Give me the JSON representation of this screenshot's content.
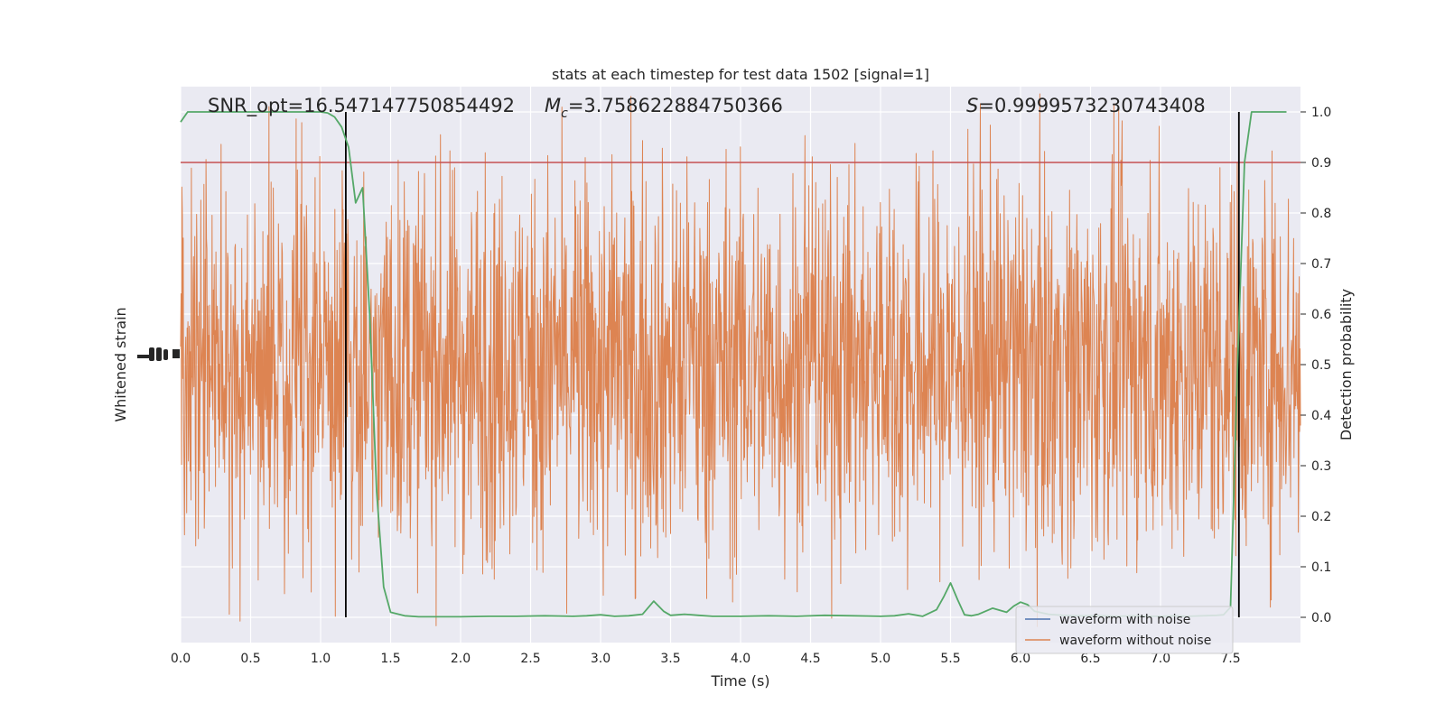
{
  "chart_data": {
    "type": "line",
    "title": "stats at each timestep for test data 1502 [signal=1]",
    "xlabel": "Time (s)",
    "ylabel_left": "Whitened strain",
    "ylabel_right": "Detection probability",
    "xlim": [
      0,
      8
    ],
    "ylim_right": [
      -0.05,
      1.05
    ],
    "x_ticks": [
      "0.0",
      "0.5",
      "1.0",
      "1.5",
      "2.0",
      "2.5",
      "3.0",
      "3.5",
      "4.0",
      "4.5",
      "5.0",
      "5.5",
      "6.0",
      "6.5",
      "7.0",
      "7.5"
    ],
    "y_ticks_right": [
      "0.0",
      "0.1",
      "0.2",
      "0.3",
      "0.4",
      "0.5",
      "0.6",
      "0.7",
      "0.8",
      "0.9",
      "1.0"
    ],
    "grid": true,
    "legend_position": "lower-right",
    "annotations": {
      "snr": "SNR_opt=16.547147750854492",
      "mc_symbol": "M",
      "mc_sub": "c",
      "mc_value": "=3.758622884750366",
      "s_symbol": "S",
      "s_value": "=0.9999573230743408"
    },
    "threshold": 0.9,
    "vlines": [
      1.18,
      7.56
    ],
    "series": [
      {
        "name": "waveform with noise",
        "color": "#4c72b0"
      },
      {
        "name": "waveform without noise",
        "color": "#dd8452"
      }
    ],
    "detection_probability": {
      "color": "#55a868",
      "x": [
        0.0,
        0.05,
        0.1,
        0.2,
        0.3,
        0.4,
        0.5,
        0.6,
        0.7,
        0.8,
        0.9,
        1.0,
        1.05,
        1.1,
        1.15,
        1.2,
        1.25,
        1.3,
        1.35,
        1.4,
        1.45,
        1.5,
        1.6,
        1.7,
        1.8,
        2.0,
        2.2,
        2.4,
        2.6,
        2.8,
        2.9,
        3.0,
        3.1,
        3.2,
        3.3,
        3.38,
        3.45,
        3.5,
        3.6,
        3.7,
        3.8,
        4.0,
        4.2,
        4.4,
        4.6,
        4.8,
        5.0,
        5.1,
        5.2,
        5.3,
        5.4,
        5.45,
        5.5,
        5.55,
        5.6,
        5.65,
        5.7,
        5.8,
        5.9,
        5.95,
        6.0,
        6.05,
        6.1,
        6.2,
        6.3,
        6.4,
        6.5,
        6.6,
        6.7,
        6.8,
        6.9,
        7.0,
        7.1,
        7.2,
        7.3,
        7.4,
        7.45,
        7.5,
        7.55,
        7.6,
        7.65,
        7.7,
        7.8,
        7.9
      ],
      "values": [
        0.98,
        1.0,
        1.0,
        1.0,
        1.0,
        1.0,
        1.0,
        1.0,
        1.0,
        1.0,
        1.0,
        1.0,
        0.998,
        0.99,
        0.97,
        0.93,
        0.82,
        0.85,
        0.6,
        0.25,
        0.06,
        0.01,
        0.003,
        0.001,
        0.001,
        0.001,
        0.002,
        0.002,
        0.003,
        0.002,
        0.003,
        0.005,
        0.002,
        0.003,
        0.006,
        0.032,
        0.012,
        0.004,
        0.006,
        0.004,
        0.002,
        0.002,
        0.003,
        0.002,
        0.004,
        0.003,
        0.002,
        0.003,
        0.007,
        0.002,
        0.015,
        0.04,
        0.068,
        0.035,
        0.005,
        0.003,
        0.006,
        0.018,
        0.01,
        0.022,
        0.03,
        0.025,
        0.012,
        0.006,
        0.004,
        0.003,
        0.003,
        0.003,
        0.002,
        0.003,
        0.002,
        0.002,
        0.003,
        0.002,
        0.003,
        0.004,
        0.005,
        0.02,
        0.5,
        0.9,
        1.0,
        1.0,
        1.0,
        1.0
      ]
    }
  }
}
